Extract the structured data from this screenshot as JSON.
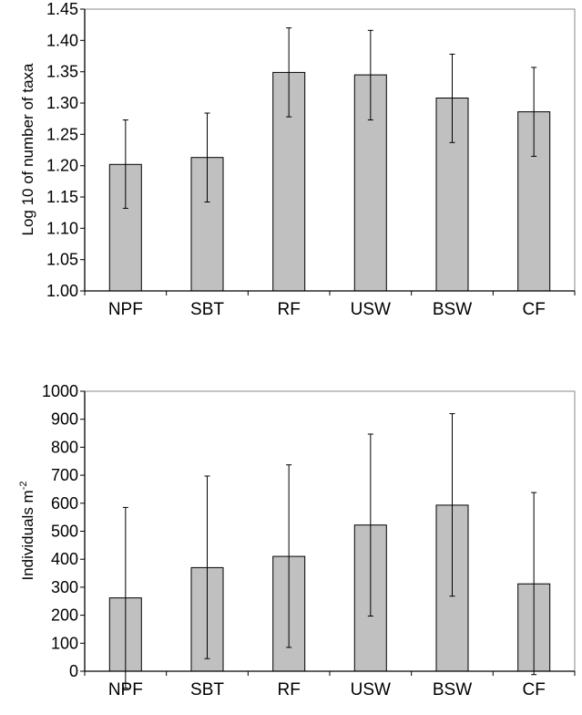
{
  "chart_data": [
    {
      "type": "bar",
      "categories": [
        "NPF",
        "SBT",
        "RF",
        "USW",
        "BSW",
        "CF"
      ],
      "values": [
        1.202,
        1.213,
        1.349,
        1.345,
        1.308,
        1.286
      ],
      "error_low": [
        1.132,
        1.142,
        1.278,
        1.273,
        1.237,
        1.215
      ],
      "error_high": [
        1.273,
        1.284,
        1.42,
        1.416,
        1.378,
        1.357
      ],
      "ylabel": "Log 10 of number of taxa",
      "ylim": [
        1.0,
        1.45
      ],
      "yticks": [
        "1.00",
        "1.05",
        "1.10",
        "1.15",
        "1.20",
        "1.25",
        "1.30",
        "1.35",
        "1.40",
        "1.45"
      ],
      "bar_color": "#c0c0c0",
      "grid": false
    },
    {
      "type": "bar",
      "categories": [
        "NPF",
        "SBT",
        "RF",
        "USW",
        "BSW",
        "CF"
      ],
      "values": [
        262,
        370,
        410,
        522,
        593,
        312
      ],
      "error_low": [
        -60,
        45,
        85,
        197,
        268,
        -12
      ],
      "error_high": [
        585,
        697,
        737,
        847,
        920,
        638
      ],
      "ylabel_main": "Individuals m",
      "ylabel_sup": "-2",
      "ylim": [
        0,
        1000
      ],
      "yticks": [
        "0",
        "100",
        "200",
        "300",
        "400",
        "500",
        "600",
        "700",
        "800",
        "900",
        "1000"
      ],
      "bar_color": "#c0c0c0",
      "grid": false
    }
  ]
}
